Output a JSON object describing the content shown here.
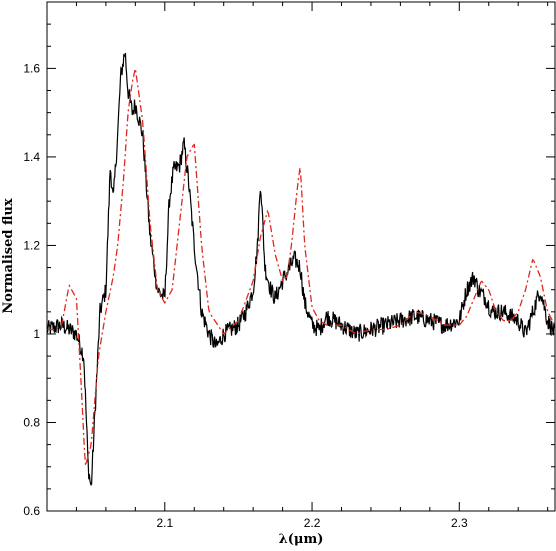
{
  "chart_data": {
    "type": "line",
    "title": "",
    "xlabel": "λ(μm)",
    "ylabel": "Normalised flux",
    "xlim": [
      2.02,
      2.365
    ],
    "ylim": [
      0.6,
      1.75
    ],
    "x_ticks": [
      {
        "value": 2.1,
        "label": "2.1"
      },
      {
        "value": 2.2,
        "label": "2.2"
      },
      {
        "value": 2.3,
        "label": "2.3"
      }
    ],
    "y_ticks": [
      {
        "value": 0.6,
        "label": "0.6"
      },
      {
        "value": 0.8,
        "label": "0.8"
      },
      {
        "value": 1.0,
        "label": "1"
      },
      {
        "value": 1.2,
        "label": "1.2"
      },
      {
        "value": 1.4,
        "label": "1.4"
      },
      {
        "value": 1.6,
        "label": "1.6"
      }
    ],
    "grid": false,
    "legend": "none",
    "series": [
      {
        "style": "solid",
        "color": "#000000",
        "noisy": true,
        "x": [
          2.02,
          2.03,
          2.04,
          2.045,
          2.048,
          2.05,
          2.053,
          2.056,
          2.06,
          2.063,
          2.065,
          2.068,
          2.07,
          2.073,
          2.075,
          2.078,
          2.08,
          2.085,
          2.09,
          2.095,
          2.1,
          2.103,
          2.106,
          2.11,
          2.113,
          2.116,
          2.12,
          2.125,
          2.13,
          2.135,
          2.14,
          2.15,
          2.155,
          2.16,
          2.163,
          2.165,
          2.168,
          2.172,
          2.175,
          2.18,
          2.185,
          2.188,
          2.192,
          2.195,
          2.2,
          2.205,
          2.21,
          2.22,
          2.23,
          2.24,
          2.25,
          2.26,
          2.27,
          2.28,
          2.29,
          2.3,
          2.305,
          2.31,
          2.313,
          2.318,
          2.322,
          2.33,
          2.34,
          2.345,
          2.35,
          2.355,
          2.36,
          2.365
        ],
        "y": [
          1.01,
          1.02,
          1.0,
          0.95,
          0.7,
          0.65,
          0.85,
          1.05,
          1.1,
          1.38,
          1.3,
          1.45,
          1.58,
          1.64,
          1.55,
          1.5,
          1.52,
          1.45,
          1.22,
          1.1,
          1.08,
          1.3,
          1.37,
          1.38,
          1.43,
          1.35,
          1.2,
          1.05,
          1.0,
          0.97,
          1.0,
          1.02,
          1.05,
          1.1,
          1.2,
          1.35,
          1.15,
          1.1,
          1.08,
          1.12,
          1.15,
          1.17,
          1.15,
          1.07,
          1.02,
          1.01,
          1.04,
          1.02,
          1.0,
          1.01,
          1.02,
          1.03,
          1.04,
          1.03,
          1.02,
          1.03,
          1.1,
          1.13,
          1.1,
          1.08,
          1.05,
          1.05,
          1.03,
          1.0,
          1.05,
          1.1,
          1.03,
          1.0
        ]
      },
      {
        "style": "dash-dot",
        "color": "#e0281e",
        "noisy": false,
        "x": [
          2.02,
          2.025,
          2.03,
          2.035,
          2.04,
          2.043,
          2.046,
          2.05,
          2.055,
          2.06,
          2.065,
          2.068,
          2.072,
          2.075,
          2.078,
          2.08,
          2.085,
          2.09,
          2.095,
          2.1,
          2.105,
          2.11,
          2.115,
          2.12,
          2.125,
          2.13,
          2.14,
          2.15,
          2.16,
          2.165,
          2.17,
          2.175,
          2.18,
          2.183,
          2.186,
          2.19,
          2.192,
          2.195,
          2.2,
          2.205,
          2.21,
          2.22,
          2.23,
          2.24,
          2.25,
          2.26,
          2.27,
          2.28,
          2.29,
          2.3,
          2.305,
          2.31,
          2.315,
          2.32,
          2.325,
          2.33,
          2.335,
          2.34,
          2.345,
          2.35,
          2.355,
          2.36,
          2.365
        ],
        "y": [
          1.01,
          1.01,
          1.02,
          1.11,
          1.08,
          0.9,
          0.7,
          0.75,
          0.95,
          1.05,
          1.13,
          1.2,
          1.35,
          1.5,
          1.57,
          1.6,
          1.48,
          1.25,
          1.1,
          1.07,
          1.1,
          1.25,
          1.4,
          1.43,
          1.2,
          1.05,
          1.0,
          1.03,
          1.12,
          1.22,
          1.28,
          1.18,
          1.12,
          1.13,
          1.2,
          1.33,
          1.38,
          1.2,
          1.06,
          1.03,
          1.02,
          1.02,
          1.0,
          1.01,
          1.01,
          1.02,
          1.05,
          1.04,
          1.02,
          1.02,
          1.04,
          1.08,
          1.12,
          1.1,
          1.05,
          1.03,
          1.03,
          1.05,
          1.1,
          1.17,
          1.13,
          1.05,
          1.02
        ]
      }
    ]
  }
}
